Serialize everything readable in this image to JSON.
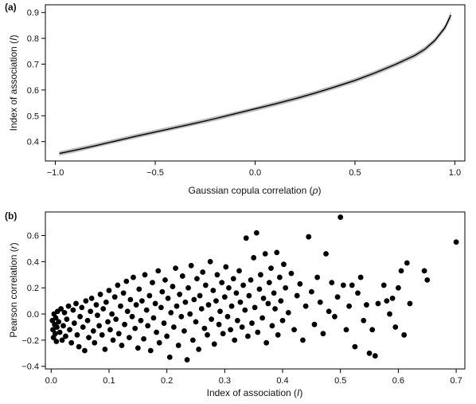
{
  "chart_data": [
    {
      "panel_label": "(a)",
      "type": "line",
      "xlabel_prefix": "Gaussian copula correlation (",
      "xlabel_symbol": "ρ",
      "xlabel_suffix": ")",
      "ylabel_prefix": "Index of association (",
      "ylabel_symbol": "I",
      "ylabel_suffix": ")",
      "xlim": [
        -1.05,
        1.05
      ],
      "ylim": [
        0.325,
        0.93
      ],
      "xticks": [
        -1.0,
        -0.5,
        0.0,
        0.5,
        1.0
      ],
      "xtick_labels": [
        "−1.0",
        "−0.5",
        "0.0",
        "0.5",
        "1.0"
      ],
      "yticks": [
        0.4,
        0.5,
        0.6,
        0.7,
        0.8,
        0.9
      ],
      "ytick_labels": [
        "0.4",
        "0.5",
        "0.6",
        "0.7",
        "0.8",
        "0.9"
      ],
      "series": [
        {
          "role": "band",
          "color": "#bdbdbd",
          "x": [
            -0.98,
            -0.9,
            -0.8,
            -0.7,
            -0.6,
            -0.5,
            -0.4,
            -0.3,
            -0.2,
            -0.1,
            0.0,
            0.1,
            0.2,
            0.3,
            0.4,
            0.5,
            0.6,
            0.7,
            0.8,
            0.85,
            0.9,
            0.95,
            0.98
          ],
          "y_lower": [
            0.345,
            0.358,
            0.376,
            0.394,
            0.412,
            0.429,
            0.446,
            0.463,
            0.48,
            0.499,
            0.518,
            0.537,
            0.557,
            0.579,
            0.603,
            0.628,
            0.657,
            0.689,
            0.724,
            0.748,
            0.782,
            0.83,
            0.875
          ],
          "y_upper": [
            0.363,
            0.376,
            0.393,
            0.411,
            0.429,
            0.446,
            0.463,
            0.48,
            0.498,
            0.516,
            0.535,
            0.555,
            0.575,
            0.597,
            0.621,
            0.646,
            0.675,
            0.707,
            0.744,
            0.768,
            0.802,
            0.852,
            0.905
          ]
        },
        {
          "role": "line",
          "color": "#000000",
          "x": [
            -0.98,
            -0.9,
            -0.8,
            -0.7,
            -0.6,
            -0.5,
            -0.4,
            -0.3,
            -0.2,
            -0.1,
            0.0,
            0.1,
            0.2,
            0.3,
            0.4,
            0.5,
            0.6,
            0.7,
            0.8,
            0.85,
            0.9,
            0.95,
            0.98
          ],
          "y": [
            0.354,
            0.367,
            0.384,
            0.402,
            0.42,
            0.437,
            0.454,
            0.471,
            0.489,
            0.508,
            0.527,
            0.546,
            0.566,
            0.588,
            0.612,
            0.637,
            0.666,
            0.698,
            0.734,
            0.758,
            0.792,
            0.841,
            0.89
          ]
        }
      ]
    },
    {
      "panel_label": "(b)",
      "type": "scatter",
      "xlabel_prefix": "Index of association (",
      "xlabel_symbol": "I",
      "xlabel_suffix": ")",
      "ylabel_prefix": "Pearson correlation (",
      "ylabel_symbol": "r",
      "ylabel_suffix": ")",
      "xlim": [
        -0.01,
        0.715
      ],
      "ylim": [
        -0.42,
        0.78
      ],
      "xticks": [
        0.0,
        0.1,
        0.2,
        0.3,
        0.4,
        0.5,
        0.6,
        0.7
      ],
      "xtick_labels": [
        "0.0",
        "0.1",
        "0.2",
        "0.3",
        "0.4",
        "0.5",
        "0.6",
        "0.7"
      ],
      "yticks": [
        -0.4,
        -0.2,
        0.0,
        0.2,
        0.4,
        0.6
      ],
      "ytick_labels": [
        "−0.4",
        "−0.2",
        "0.0",
        "0.2",
        "0.4",
        "0.6"
      ],
      "marker_color": "#000000",
      "points": [
        [
          0.002,
          -0.05
        ],
        [
          0.003,
          -0.12
        ],
        [
          0.004,
          -0.18
        ],
        [
          0.005,
          0.0
        ],
        [
          0.006,
          -0.08
        ],
        [
          0.007,
          -0.15
        ],
        [
          0.008,
          -0.03
        ],
        [
          0.009,
          -0.21
        ],
        [
          0.01,
          -0.1
        ],
        [
          0.011,
          0.02
        ],
        [
          0.013,
          -0.06
        ],
        [
          0.015,
          -0.14
        ],
        [
          0.017,
          0.04
        ],
        [
          0.019,
          -0.2
        ],
        [
          0.021,
          -0.09
        ],
        [
          0.023,
          0.01
        ],
        [
          0.025,
          -0.17
        ],
        [
          0.027,
          -0.04
        ],
        [
          0.03,
          0.06
        ],
        [
          0.032,
          -0.12
        ],
        [
          0.035,
          -0.22
        ],
        [
          0.038,
          0.03
        ],
        [
          0.04,
          -0.07
        ],
        [
          0.043,
          0.08
        ],
        [
          0.045,
          -0.16
        ],
        [
          0.048,
          -0.25
        ],
        [
          0.05,
          -0.02
        ],
        [
          0.053,
          0.05
        ],
        [
          0.055,
          -0.1
        ],
        [
          0.058,
          -0.28
        ],
        [
          0.06,
          0.1
        ],
        [
          0.063,
          -0.05
        ],
        [
          0.065,
          -0.18
        ],
        [
          0.068,
          0.02
        ],
        [
          0.07,
          0.12
        ],
        [
          0.073,
          -0.13
        ],
        [
          0.075,
          -0.22
        ],
        [
          0.078,
          0.07
        ],
        [
          0.08,
          -0.01
        ],
        [
          0.083,
          -0.09
        ],
        [
          0.085,
          0.15
        ],
        [
          0.088,
          -0.16
        ],
        [
          0.09,
          0.04
        ],
        [
          0.093,
          -0.27
        ],
        [
          0.095,
          0.09
        ],
        [
          0.098,
          -0.06
        ],
        [
          0.1,
          0.18
        ],
        [
          0.102,
          -0.12
        ],
        [
          0.105,
          0.0
        ],
        [
          0.107,
          -0.2
        ],
        [
          0.11,
          0.13
        ],
        [
          0.112,
          -0.04
        ],
        [
          0.115,
          0.22
        ],
        [
          0.117,
          -0.15
        ],
        [
          0.12,
          0.06
        ],
        [
          0.122,
          -0.24
        ],
        [
          0.125,
          0.16
        ],
        [
          0.127,
          -0.08
        ],
        [
          0.13,
          0.25
        ],
        [
          0.132,
          0.02
        ],
        [
          0.135,
          -0.18
        ],
        [
          0.137,
          0.11
        ],
        [
          0.14,
          -0.02
        ],
        [
          0.142,
          0.28
        ],
        [
          0.145,
          -0.11
        ],
        [
          0.147,
          0.07
        ],
        [
          0.15,
          -0.26
        ],
        [
          0.152,
          0.19
        ],
        [
          0.155,
          -0.05
        ],
        [
          0.157,
          0.1
        ],
        [
          0.16,
          -0.19
        ],
        [
          0.162,
          0.3
        ],
        [
          0.165,
          0.03
        ],
        [
          0.167,
          -0.09
        ],
        [
          0.17,
          0.14
        ],
        [
          0.172,
          -0.28
        ],
        [
          0.175,
          0.24
        ],
        [
          0.177,
          -0.03
        ],
        [
          0.18,
          0.08
        ],
        [
          0.182,
          -0.14
        ],
        [
          0.185,
          0.33
        ],
        [
          0.187,
          -0.22
        ],
        [
          0.19,
          0.05
        ],
        [
          0.192,
          0.17
        ],
        [
          0.195,
          -0.07
        ],
        [
          0.197,
          0.26
        ],
        [
          0.2,
          -0.17
        ],
        [
          0.202,
          0.12
        ],
        [
          0.205,
          -0.33
        ],
        [
          0.207,
          0.01
        ],
        [
          0.21,
          0.21
        ],
        [
          0.212,
          -0.1
        ],
        [
          0.215,
          0.35
        ],
        [
          0.217,
          0.06
        ],
        [
          0.22,
          -0.24
        ],
        [
          0.222,
          0.15
        ],
        [
          0.225,
          -0.02
        ],
        [
          0.227,
          0.29
        ],
        [
          0.23,
          -0.13
        ],
        [
          0.232,
          0.09
        ],
        [
          0.235,
          -0.35
        ],
        [
          0.237,
          0.2
        ],
        [
          0.24,
          0.0
        ],
        [
          0.242,
          0.37
        ],
        [
          0.245,
          -0.2
        ],
        [
          0.247,
          0.11
        ],
        [
          0.25,
          -0.06
        ],
        [
          0.252,
          0.27
        ],
        [
          0.255,
          -0.27
        ],
        [
          0.257,
          0.14
        ],
        [
          0.26,
          0.04
        ],
        [
          0.262,
          0.32
        ],
        [
          0.265,
          -0.11
        ],
        [
          0.267,
          0.22
        ],
        [
          0.27,
          -0.16
        ],
        [
          0.272,
          0.07
        ],
        [
          0.275,
          0.4
        ],
        [
          0.277,
          -0.04
        ],
        [
          0.28,
          0.18
        ],
        [
          0.282,
          -0.23
        ],
        [
          0.285,
          0.1
        ],
        [
          0.287,
          0.3
        ],
        [
          0.29,
          -0.08
        ],
        [
          0.292,
          0.02
        ],
        [
          0.295,
          0.24
        ],
        [
          0.297,
          -0.15
        ],
        [
          0.3,
          0.13
        ],
        [
          0.302,
          0.36
        ],
        [
          0.305,
          -0.02
        ],
        [
          0.307,
          0.2
        ],
        [
          0.31,
          -0.12
        ],
        [
          0.312,
          0.06
        ],
        [
          0.315,
          0.27
        ],
        [
          0.317,
          -0.2
        ],
        [
          0.32,
          0.16
        ],
        [
          0.322,
          -0.05
        ],
        [
          0.325,
          0.33
        ],
        [
          0.327,
          0.09
        ],
        [
          0.33,
          -0.1
        ],
        [
          0.332,
          0.22
        ],
        [
          0.335,
          0.03
        ],
        [
          0.337,
          0.58
        ],
        [
          0.34,
          -0.17
        ],
        [
          0.342,
          0.14
        ],
        [
          0.345,
          0.26
        ],
        [
          0.347,
          -0.07
        ],
        [
          0.35,
          0.43
        ],
        [
          0.352,
          0.05
        ],
        [
          0.355,
          0.62
        ],
        [
          0.357,
          -0.14
        ],
        [
          0.36,
          0.19
        ],
        [
          0.362,
          0.3
        ],
        [
          0.365,
          -0.03
        ],
        [
          0.367,
          0.12
        ],
        [
          0.37,
          0.46
        ],
        [
          0.372,
          -0.22
        ],
        [
          0.375,
          0.08
        ],
        [
          0.377,
          0.24
        ],
        [
          0.38,
          0.35
        ],
        [
          0.382,
          -0.09
        ],
        [
          0.385,
          0.16
        ],
        [
          0.387,
          0.04
        ],
        [
          0.39,
          0.47
        ],
        [
          0.392,
          -0.16
        ],
        [
          0.395,
          0.28
        ],
        [
          0.397,
          0.1
        ],
        [
          0.4,
          -0.05
        ],
        [
          0.402,
          0.38
        ],
        [
          0.405,
          0.2
        ],
        [
          0.41,
          0.01
        ],
        [
          0.415,
          0.31
        ],
        [
          0.42,
          -0.12
        ],
        [
          0.425,
          0.14
        ],
        [
          0.43,
          0.23
        ],
        [
          0.435,
          -0.2
        ],
        [
          0.44,
          0.06
        ],
        [
          0.445,
          0.59
        ],
        [
          0.45,
          0.17
        ],
        [
          0.455,
          -0.08
        ],
        [
          0.46,
          0.28
        ],
        [
          0.465,
          0.09
        ],
        [
          0.47,
          -0.15
        ],
        [
          0.475,
          0.46
        ],
        [
          0.48,
          0.02
        ],
        [
          0.485,
          0.24
        ],
        [
          0.49,
          -0.02
        ],
        [
          0.495,
          0.13
        ],
        [
          0.5,
          0.74
        ],
        [
          0.505,
          0.22
        ],
        [
          0.51,
          -0.12
        ],
        [
          0.515,
          0.06
        ],
        [
          0.52,
          0.22
        ],
        [
          0.525,
          -0.25
        ],
        [
          0.53,
          0.16
        ],
        [
          0.535,
          0.28
        ],
        [
          0.54,
          -0.05
        ],
        [
          0.545,
          0.07
        ],
        [
          0.55,
          -0.3
        ],
        [
          0.555,
          -0.12
        ],
        [
          0.56,
          -0.32
        ],
        [
          0.565,
          0.08
        ],
        [
          0.575,
          0.22
        ],
        [
          0.58,
          0.1
        ],
        [
          0.585,
          0.0
        ],
        [
          0.59,
          0.12
        ],
        [
          0.595,
          -0.1
        ],
        [
          0.6,
          0.2
        ],
        [
          0.605,
          0.33
        ],
        [
          0.61,
          -0.16
        ],
        [
          0.615,
          0.39
        ],
        [
          0.62,
          0.08
        ],
        [
          0.645,
          0.33
        ],
        [
          0.65,
          0.26
        ],
        [
          0.7,
          0.55
        ]
      ]
    }
  ]
}
